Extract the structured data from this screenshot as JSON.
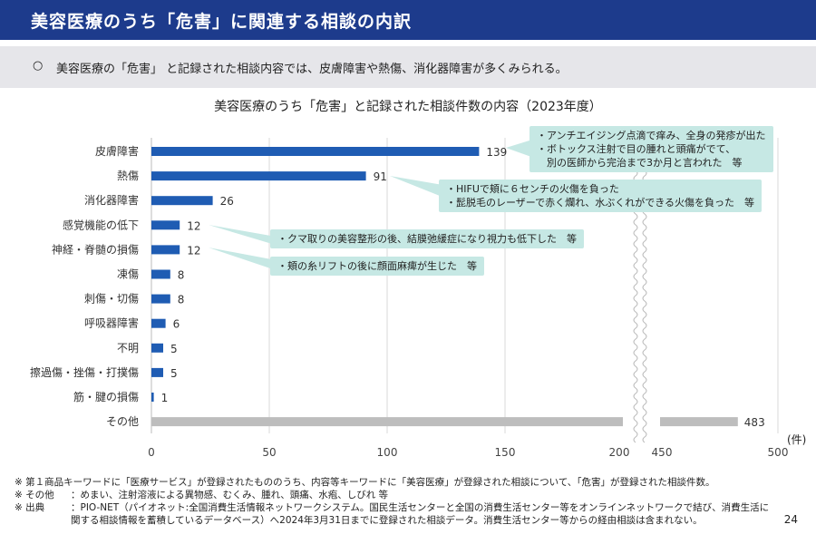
{
  "header": {
    "title": "美容医療のうち「危害」に関連する相談の内訳"
  },
  "summary": {
    "bullet": "○",
    "text": "美容医療の「危害」 と記録された相談内容では、皮膚障害や熱傷、消化器障害が多くみられる。"
  },
  "chart_data": {
    "type": "bar",
    "orientation": "horizontal",
    "title": "美容医療のうち「危害」と記録された相談件数の内容（2023年度）",
    "unit": "(件)",
    "categories": [
      "皮膚障害",
      "熱傷",
      "消化器障害",
      "感覚機能の低下",
      "神経・脊髄の損傷",
      "凍傷",
      "刺傷・切傷",
      "呼吸器障害",
      "不明",
      "擦過傷・挫傷・打撲傷",
      "筋・腱の損傷",
      "その他"
    ],
    "values": [
      139,
      91,
      26,
      12,
      12,
      8,
      8,
      6,
      5,
      5,
      1,
      483
    ],
    "xticks": [
      "0",
      "50",
      "100",
      "150",
      "200",
      "450",
      "500"
    ],
    "axis_break": [
      200,
      450
    ],
    "colors": {
      "main": "#1f5cb3",
      "other": "#bdbdbd"
    },
    "grid": true
  },
  "callouts": [
    {
      "lines": [
        "・アンチエイジング点滴で痒み、全身の発疹が出た",
        "・ボトックス注射で目の腫れと頭痛がでて、",
        "　別の医師から完治まで3か月と言われた　等"
      ]
    },
    {
      "lines": [
        "・HIFUで頬に６センチの火傷を負った",
        "・髭脱毛のレーザーで赤く爛れ、水ぶくれができる火傷を負った　等"
      ]
    },
    {
      "lines": [
        "・クマ取りの美容整形の後、結膜弛緩症になり視力も低下した　等"
      ]
    },
    {
      "lines": [
        "・頬の糸リフトの後に顔面麻痺が生じた　等"
      ]
    }
  ],
  "footnotes": [
    {
      "mark": "※ 第１商品キーワードに「医療サービス」が登録されたもののうち、内容等キーワードに「美容医療」が登録された相談について、「危害」が登録された相談件数。",
      "text": ""
    },
    {
      "mark": "※ その他",
      "text": "：めまい、注射溶液による異物感、むくみ、腫れ、頭痛、水疱、しびれ 等"
    },
    {
      "mark": "※ 出典",
      "text": "：PIO-NET（パイオネット:全国消費生活情報ネットワークシステム。国民生活センターと全国の消費生活センター等をオンラインネットワークで結び、消費生活に関する相談情報を蓄積しているデータベース）へ2024年3月31日までに登録された相談データ。消費生活センター等からの経由相談は含まれない。"
    }
  ],
  "page_number": "24"
}
